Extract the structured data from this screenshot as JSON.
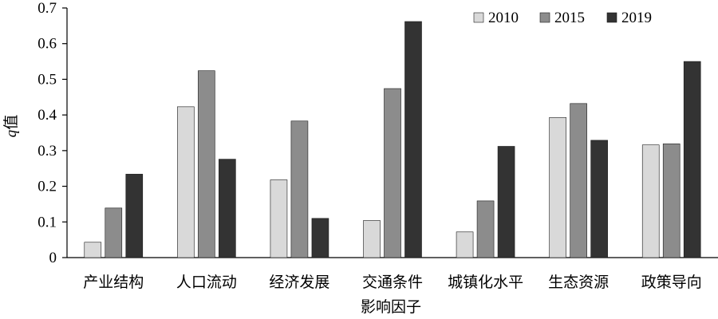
{
  "chart_data": {
    "type": "bar",
    "title": "",
    "xlabel": "影响因子",
    "ylabel_italic": "q",
    "ylabel_rest": "值",
    "ylim": [
      0,
      0.7
    ],
    "yticks": [
      "0",
      "0.1",
      "0.2",
      "0.3",
      "0.4",
      "0.5",
      "0.6",
      "0.7"
    ],
    "grid": false,
    "legend_position": "top-right",
    "categories": [
      "产业结构",
      "人口流动",
      "经济发展",
      "交通条件",
      "城镇化水平",
      "生态资源",
      "政策导向"
    ],
    "series": [
      {
        "name": "2010",
        "color": "#d9d9d9",
        "values": [
          0.043,
          0.423,
          0.218,
          0.104,
          0.072,
          0.393,
          0.316
        ]
      },
      {
        "name": "2015",
        "color": "#8c8c8c",
        "values": [
          0.139,
          0.524,
          0.383,
          0.474,
          0.159,
          0.432,
          0.319
        ]
      },
      {
        "name": "2019",
        "color": "#333333",
        "values": [
          0.234,
          0.276,
          0.11,
          0.662,
          0.312,
          0.329,
          0.55
        ]
      }
    ]
  }
}
